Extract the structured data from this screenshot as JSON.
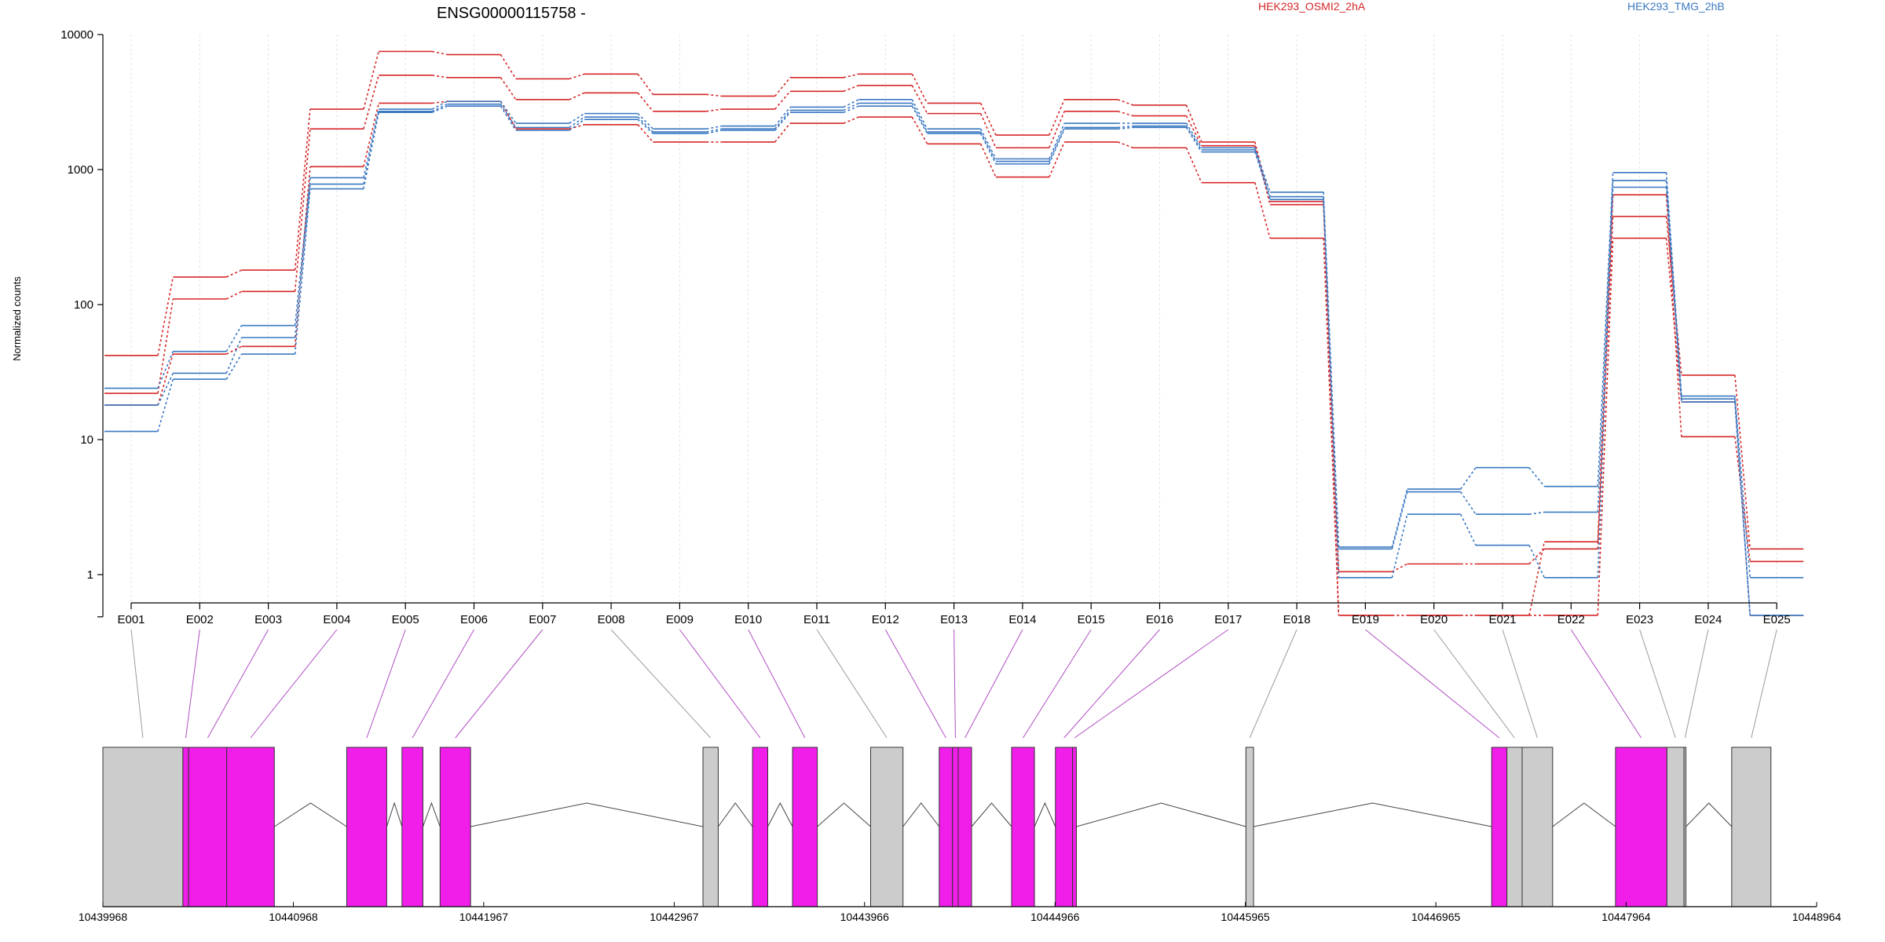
{
  "chart_data": {
    "type": "line",
    "title": "ENSG00000115758 -",
    "ylabel": "Normalized counts",
    "yscale": "log",
    "ylim": [
      0.5,
      10000
    ],
    "y_ticks": [
      1,
      10,
      100,
      1000,
      10000
    ],
    "y_tick_labels": [
      "1",
      "10",
      "100",
      "1000",
      "10000"
    ],
    "categories": [
      "E001",
      "E002",
      "E003",
      "E004",
      "E005",
      "E006",
      "E007",
      "E008",
      "E009",
      "E010",
      "E011",
      "E012",
      "E013",
      "E014",
      "E015",
      "E016",
      "E017",
      "E018",
      "E019",
      "E020",
      "E021",
      "E022",
      "E023",
      "E024",
      "E025"
    ],
    "legend": [
      {
        "label": "HEK293_OSMI2_2hA",
        "color": "#d62728"
      },
      {
        "label": "HEK293_TMG_2hB",
        "color": "#3a78c2"
      }
    ],
    "series": [
      {
        "group": "HEK293_OSMI2_2hA",
        "color": "#d62728",
        "values": [
          42,
          160,
          180,
          2800,
          7500,
          7100,
          4700,
          5100,
          3600,
          3500,
          4800,
          5100,
          3100,
          1800,
          3300,
          3000,
          1600,
          580,
          1.05,
          1.2,
          1.2,
          1.55,
          450,
          30,
          1.55
        ]
      },
      {
        "group": "HEK293_OSMI2_2hA",
        "color": "#d62728",
        "values": [
          22,
          110,
          125,
          2000,
          5000,
          4800,
          3300,
          3700,
          2700,
          2800,
          3800,
          4200,
          2600,
          1450,
          2700,
          2500,
          1500,
          550,
          0.5,
          0.5,
          0.5,
          1.75,
          650,
          10.5,
          1.25
        ]
      },
      {
        "group": "HEK293_OSMI2_2hA",
        "color": "#d62728",
        "values": [
          18,
          43,
          49,
          1050,
          3100,
          3200,
          2000,
          2150,
          1600,
          1600,
          2200,
          2450,
          1550,
          880,
          1600,
          1450,
          800,
          310,
          0.5,
          0.5,
          0.5,
          0.5,
          310,
          19,
          0.5
        ]
      },
      {
        "group": "HEK293_TMG_2hB",
        "color": "#3a78c2",
        "values": [
          24,
          45,
          70,
          870,
          2800,
          3200,
          2200,
          2600,
          2000,
          2100,
          2900,
          3300,
          2000,
          1200,
          2200,
          2200,
          1450,
          680,
          1.6,
          4.3,
          6.2,
          4.5,
          950,
          21,
          0.95
        ]
      },
      {
        "group": "HEK293_TMG_2hB",
        "color": "#3a78c2",
        "values": [
          18,
          31,
          57,
          780,
          2700,
          3050,
          2050,
          2450,
          1900,
          2000,
          2750,
          3100,
          1900,
          1150,
          2050,
          2100,
          1400,
          630,
          1.55,
          4.1,
          2.8,
          2.9,
          830,
          20,
          0.5
        ]
      },
      {
        "group": "HEK293_TMG_2hB",
        "color": "#3a78c2",
        "values": [
          11.5,
          28,
          43,
          720,
          2650,
          2950,
          1950,
          2350,
          1850,
          1950,
          2650,
          2950,
          1850,
          1100,
          2000,
          2050,
          1350,
          600,
          0.95,
          2.8,
          1.65,
          0.95,
          740,
          19,
          0.5
        ]
      }
    ],
    "x_ticks": [
      "10439968",
      "10440968",
      "10441967",
      "10442967",
      "10443966",
      "10444966",
      "10445965",
      "10446965",
      "10447964",
      "10448964"
    ],
    "exons": [
      {
        "start": 10439968,
        "end": 10440388,
        "coding": false
      },
      {
        "start": 10440388,
        "end": 10440418,
        "coding": true
      },
      {
        "start": 10440418,
        "end": 10440618,
        "coding": true
      },
      {
        "start": 10440618,
        "end": 10440868,
        "coding": true
      },
      {
        "start": 10441248,
        "end": 10441458,
        "coding": true
      },
      {
        "start": 10441538,
        "end": 10441648,
        "coding": true
      },
      {
        "start": 10441738,
        "end": 10441898,
        "coding": true
      },
      {
        "start": 10443118,
        "end": 10443198,
        "coding": false
      },
      {
        "start": 10443378,
        "end": 10443458,
        "coding": true
      },
      {
        "start": 10443588,
        "end": 10443718,
        "coding": true
      },
      {
        "start": 10443998,
        "end": 10444168,
        "coding": false
      },
      {
        "start": 10444358,
        "end": 10444428,
        "coding": true
      },
      {
        "start": 10444428,
        "end": 10444458,
        "coding": true
      },
      {
        "start": 10444458,
        "end": 10444528,
        "coding": true
      },
      {
        "start": 10444738,
        "end": 10444858,
        "coding": true
      },
      {
        "start": 10444968,
        "end": 10445058,
        "coding": true
      },
      {
        "start": 10445058,
        "end": 10445078,
        "coding": true
      },
      {
        "start": 10445968,
        "end": 10446008,
        "coding": false
      },
      {
        "start": 10447258,
        "end": 10447338,
        "coding": true
      },
      {
        "start": 10447338,
        "end": 10447418,
        "coding": false
      },
      {
        "start": 10447418,
        "end": 10447578,
        "coding": false
      },
      {
        "start": 10447908,
        "end": 10448178,
        "coding": true
      },
      {
        "start": 10448178,
        "end": 10448268,
        "coding": false
      },
      {
        "start": 10448268,
        "end": 10448278,
        "coding": false
      },
      {
        "start": 10448518,
        "end": 10448724,
        "coding": false
      }
    ],
    "exon_colors": {
      "coding": "#f01ee8",
      "noncoding": "#cccccc"
    }
  }
}
